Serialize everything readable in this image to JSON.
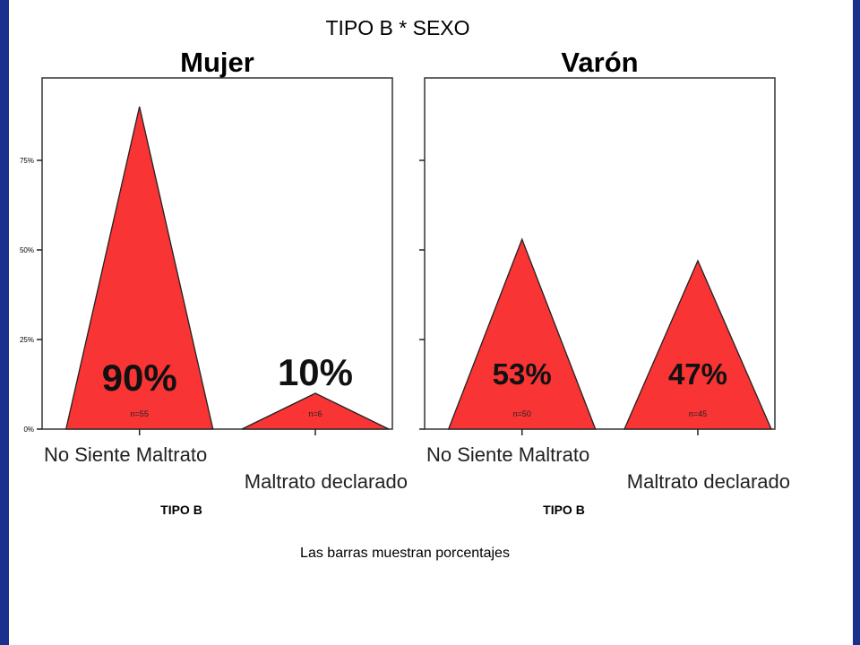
{
  "colors": {
    "background_border": "#1b2f8f",
    "bar_fill": "#f83434",
    "bar_stroke": "#222222"
  },
  "chart_data": {
    "type": "bar",
    "mark_shape": "triangle",
    "title": "TIPO B * SEXO",
    "xlabel": "TIPO B",
    "ylabel": "",
    "ylim": [
      0,
      100
    ],
    "yticks": [
      "0%",
      "25%",
      "50%",
      "75%"
    ],
    "categories": [
      "No Siente Maltrato",
      "Maltrato declarado"
    ],
    "footnote": "Las barras muestran porcentajes",
    "grid": false,
    "legend": "none",
    "panels": [
      {
        "name": "Mujer",
        "values": [
          90,
          10
        ],
        "value_labels": [
          "90%",
          "10%"
        ],
        "n_labels": [
          "n=55",
          "n=6"
        ]
      },
      {
        "name": "Varón",
        "values": [
          53,
          47
        ],
        "value_labels": [
          "53%",
          "47%"
        ],
        "n_labels": [
          "n=50",
          "n=45"
        ]
      }
    ]
  }
}
